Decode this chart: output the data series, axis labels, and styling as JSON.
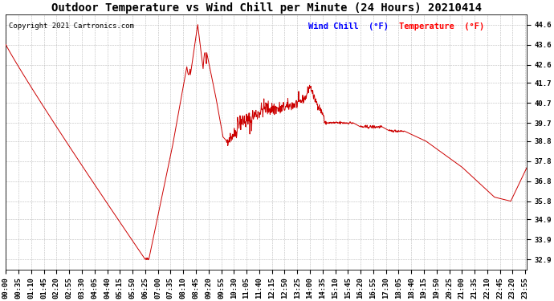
{
  "title": "Outdoor Temperature vs Wind Chill per Minute (24 Hours) 20210414",
  "copyright": "Copyright 2021 Cartronics.com",
  "legend_wind_chill": "Wind Chill  (°F)",
  "legend_temperature": "Temperature  (°F)",
  "line_color": "#cc0000",
  "background_color": "#ffffff",
  "grid_color": "#bbbbbb",
  "yticks": [
    32.9,
    33.9,
    34.9,
    35.8,
    36.8,
    37.8,
    38.8,
    39.7,
    40.7,
    41.7,
    42.6,
    43.6,
    44.6
  ],
  "ymin": 32.4,
  "ymax": 45.1,
  "title_fontsize": 10,
  "copyright_fontsize": 6.5,
  "legend_fontsize": 7.5,
  "tick_fontsize": 6.5,
  "tick_minutes_step": 35
}
